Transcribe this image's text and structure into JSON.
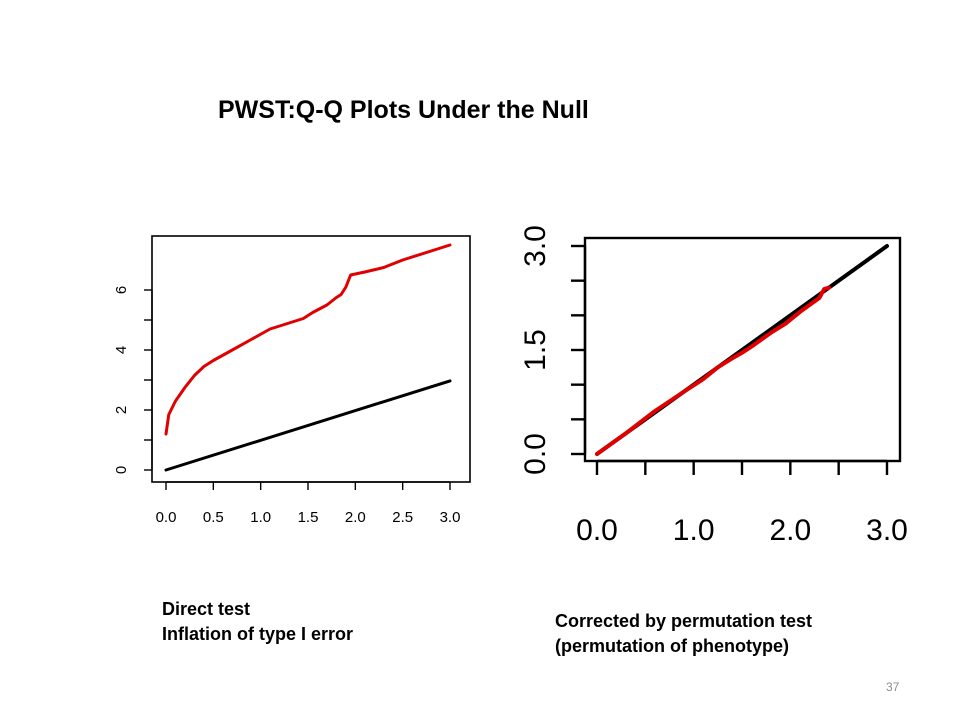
{
  "slide": {
    "title": "PWST:Q-Q Plots Under the Null",
    "caption_left_line1": "Direct test",
    "caption_left_line2": "Inflation of type I error",
    "caption_right_line1": "Corrected by permutation test",
    "caption_right_line2": "(permutation of phenotype)",
    "page_number": "37"
  },
  "chart_data": [
    {
      "type": "line",
      "xlim": [
        0,
        3
      ],
      "ylim": [
        0,
        7.5
      ],
      "x_ticks": [
        "0.0",
        "0.5",
        "1.0",
        "1.5",
        "2.0",
        "2.5",
        "3.0"
      ],
      "y_ticks": [
        "0",
        "2",
        "4",
        "6"
      ],
      "grid": false,
      "series": [
        {
          "color": "#000000",
          "points": [
            [
              0,
              0
            ],
            [
              3.0,
              2.97
            ]
          ]
        },
        {
          "color": "#e00000",
          "points": [
            [
              0,
              1.2
            ],
            [
              0.03,
              1.85
            ],
            [
              0.1,
              2.3
            ],
            [
              0.2,
              2.75
            ],
            [
              0.3,
              3.15
            ],
            [
              0.4,
              3.45
            ],
            [
              0.5,
              3.65
            ],
            [
              0.7,
              4.0
            ],
            [
              0.9,
              4.35
            ],
            [
              1.1,
              4.7
            ],
            [
              1.3,
              4.9
            ],
            [
              1.45,
              5.05
            ],
            [
              1.55,
              5.25
            ],
            [
              1.7,
              5.5
            ],
            [
              1.8,
              5.75
            ],
            [
              1.85,
              5.85
            ],
            [
              1.9,
              6.1
            ],
            [
              1.95,
              6.5
            ],
            [
              2.1,
              6.6
            ],
            [
              2.3,
              6.75
            ],
            [
              2.5,
              7.0
            ],
            [
              2.8,
              7.3
            ],
            [
              3.0,
              7.5
            ]
          ]
        }
      ]
    },
    {
      "type": "line",
      "xlim": [
        0,
        3
      ],
      "ylim": [
        0,
        3
      ],
      "x_ticks": [
        "0.0",
        "1.0",
        "2.0",
        "3.0"
      ],
      "y_ticks": [
        "0.0",
        "1.5",
        "3.0"
      ],
      "grid": false,
      "series": [
        {
          "color": "#000000",
          "points": [
            [
              0,
              0
            ],
            [
              3.0,
              3.0
            ]
          ]
        },
        {
          "color": "#e00000",
          "points": [
            [
              0,
              0
            ],
            [
              0.3,
              0.3
            ],
            [
              0.6,
              0.62
            ],
            [
              0.9,
              0.9
            ],
            [
              1.1,
              1.08
            ],
            [
              1.25,
              1.25
            ],
            [
              1.4,
              1.38
            ],
            [
              1.5,
              1.46
            ],
            [
              1.6,
              1.55
            ],
            [
              1.7,
              1.65
            ],
            [
              1.8,
              1.75
            ],
            [
              1.95,
              1.88
            ],
            [
              2.1,
              2.05
            ],
            [
              2.2,
              2.15
            ],
            [
              2.3,
              2.25
            ],
            [
              2.35,
              2.38
            ],
            [
              2.4,
              2.4
            ]
          ]
        }
      ]
    }
  ]
}
